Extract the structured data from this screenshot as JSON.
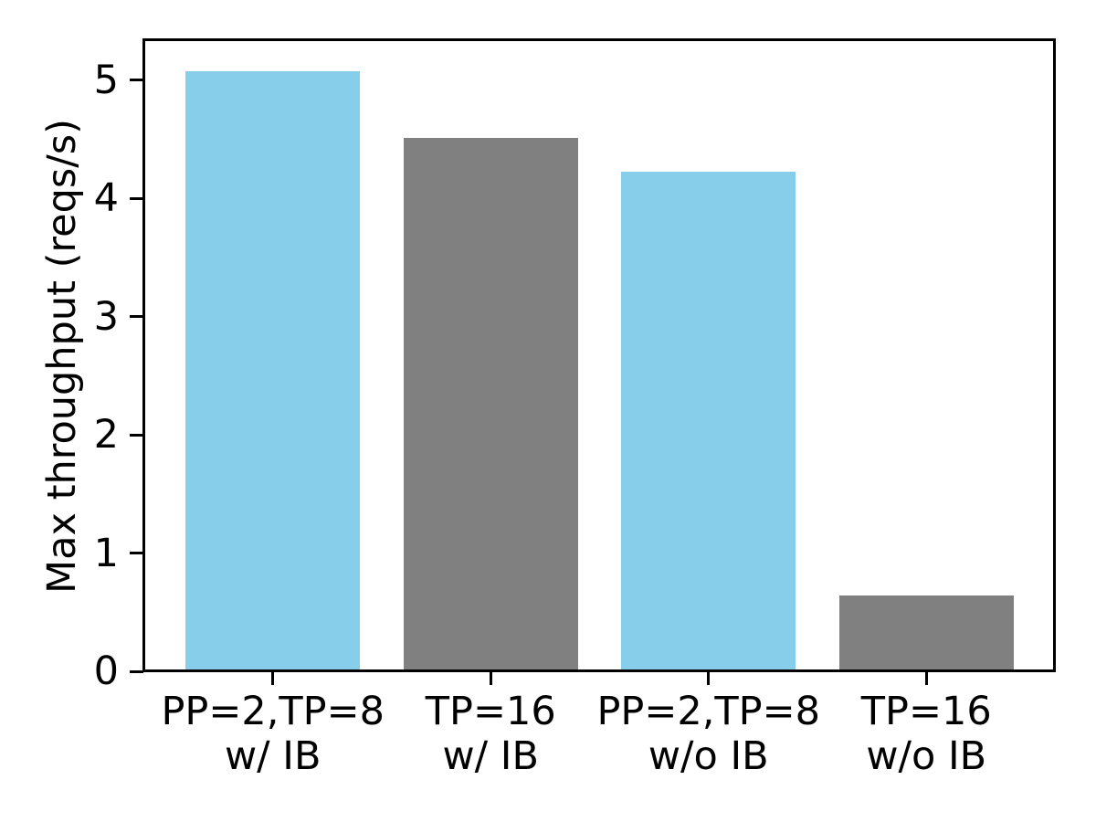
{
  "colors": {
    "bar_blue": "#87CEEB",
    "bar_gray": "#808080",
    "axis": "#000000",
    "background": "#FFFFFF"
  },
  "chart_data": {
    "type": "bar",
    "title": "",
    "xlabel": "",
    "ylabel": "Max throughput (reqs/s)",
    "categories": [
      {
        "line1": "PP=2,TP=8",
        "line2": "w/ IB"
      },
      {
        "line1": "TP=16",
        "line2": "w/ IB"
      },
      {
        "line1": "PP=2,TP=8",
        "line2": "w/o IB"
      },
      {
        "line1": "TP=16",
        "line2": "w/o IB"
      }
    ],
    "values": [
      5.08,
      4.51,
      4.23,
      0.64
    ],
    "bar_colors": [
      "#87CEEB",
      "#808080",
      "#87CEEB",
      "#808080"
    ],
    "yticks": [
      0,
      1,
      2,
      3,
      4,
      5
    ],
    "ylim": [
      0,
      5.34
    ],
    "bar_width_fraction": 0.8,
    "grid": false,
    "legend": "none"
  }
}
